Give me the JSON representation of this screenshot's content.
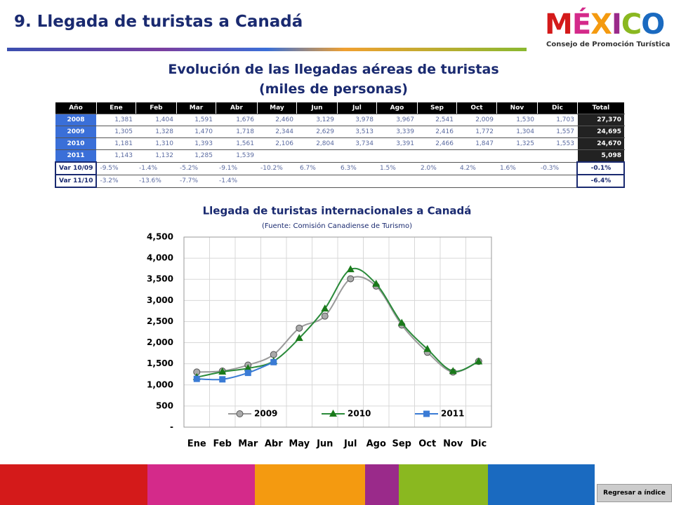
{
  "header": {
    "title": "9. Llegada de turistas a Canadá",
    "logo": "MÉXICO",
    "logo_subtitle": "Consejo de Promoción Turística"
  },
  "table": {
    "title": "Evolución de las llegadas aéreas de turistas",
    "subtitle": "(miles de personas)",
    "headers": [
      "Año",
      "Ene",
      "Feb",
      "Mar",
      "Abr",
      "May",
      "Jun",
      "Jul",
      "Ago",
      "Sep",
      "Oct",
      "Nov",
      "Dic",
      "Total"
    ],
    "rows": [
      [
        "2008",
        "1,381",
        "1,404",
        "1,591",
        "1,676",
        "2,460",
        "3,129",
        "3,978",
        "3,967",
        "2,541",
        "2,009",
        "1,530",
        "1,703",
        "27,370"
      ],
      [
        "2009",
        "1,305",
        "1,328",
        "1,470",
        "1,718",
        "2,344",
        "2,629",
        "3,513",
        "3,339",
        "2,416",
        "1,772",
        "1,304",
        "1,557",
        "24,695"
      ],
      [
        "2010",
        "1,181",
        "1,310",
        "1,393",
        "1,561",
        "2,106",
        "2,804",
        "3,734",
        "3,391",
        "2,466",
        "1,847",
        "1,325",
        "1,553",
        "24,670"
      ],
      [
        "2011",
        "1,143",
        "1,132",
        "1,285",
        "1,539",
        null,
        null,
        null,
        null,
        null,
        null,
        null,
        null,
        "5,098"
      ],
      [
        "Var 10/09",
        "-9.5%",
        "-1.4%",
        "-5.2%",
        "-9.1%",
        "-10.2%",
        "6.7%",
        "6.3%",
        "1.5%",
        "2.0%",
        "4.2%",
        "1.6%",
        "-0.3%",
        "-0.1%"
      ],
      [
        "Var 11/10",
        "-3.2%",
        "-13.6%",
        "-7.7%",
        "-1.4%",
        null,
        null,
        null,
        null,
        null,
        null,
        null,
        null,
        "-6.4%"
      ]
    ]
  },
  "chart_data": {
    "type": "line",
    "title": "Llegada de turistas internacionales a Canadá",
    "subtitle": "(Fuente: Comisión Canadiense de Turismo)",
    "categories": [
      "Ene",
      "Feb",
      "Mar",
      "Abr",
      "May",
      "Jun",
      "Jul",
      "Ago",
      "Sep",
      "Oct",
      "Nov",
      "Dic"
    ],
    "series": [
      {
        "name": "2009",
        "color": "#9a9a9a",
        "marker": "circle",
        "values": [
          1305,
          1328,
          1470,
          1718,
          2344,
          2629,
          3513,
          3339,
          2416,
          1772,
          1304,
          1557
        ]
      },
      {
        "name": "2010",
        "color": "#2a8a3a",
        "marker": "triangle",
        "values": [
          1181,
          1310,
          1393,
          1561,
          2106,
          2804,
          3734,
          3391,
          2466,
          1847,
          1325,
          1553
        ]
      },
      {
        "name": "2011",
        "color": "#3a7bd5",
        "marker": "square",
        "values": [
          1143,
          1132,
          1285,
          1539,
          null,
          null,
          null,
          null,
          null,
          null,
          null,
          null
        ]
      }
    ],
    "ylim": [
      0,
      4500
    ],
    "yticks": [
      {
        "value": 0,
        "label": "-"
      },
      500,
      {
        "value": 1000,
        "label": "1,000"
      },
      {
        "value": 1500,
        "label": "1,500"
      },
      {
        "value": 2000,
        "label": "2,000"
      },
      {
        "value": 2500,
        "label": "2,500"
      },
      {
        "value": 3000,
        "label": "3,000"
      },
      {
        "value": 3500,
        "label": "3,500"
      },
      {
        "value": 4000,
        "label": "4,000"
      },
      {
        "value": 4500,
        "label": "4,500"
      }
    ],
    "grid": true
  },
  "footer": {
    "button": "Regresar a índice"
  }
}
